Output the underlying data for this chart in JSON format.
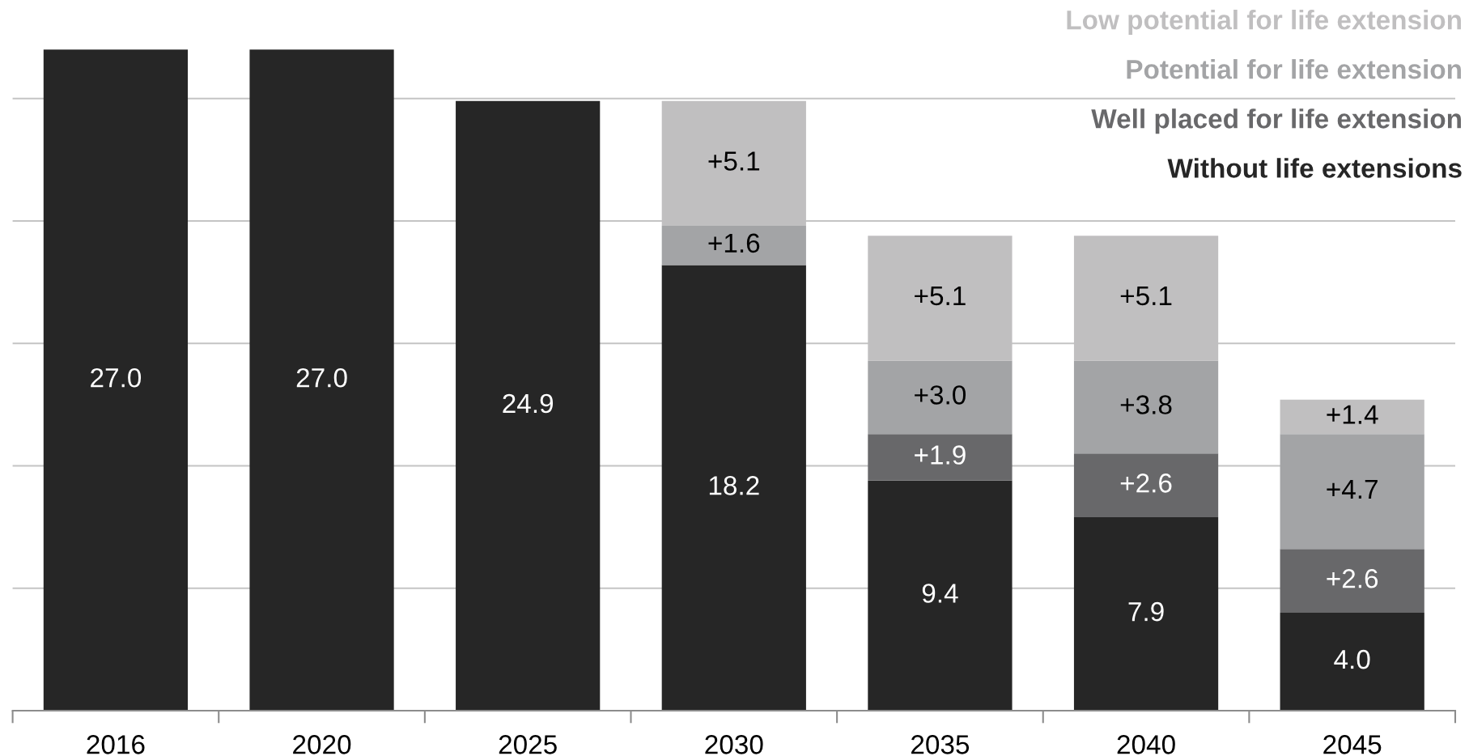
{
  "chart_data": {
    "type": "bar",
    "stacked": true,
    "categories": [
      "2016",
      "2020",
      "2025",
      "2030",
      "2035",
      "2040",
      "2045"
    ],
    "series": [
      {
        "name": "Without life extensions",
        "color": "#262626",
        "values": [
          27.0,
          27.0,
          24.9,
          18.2,
          9.4,
          7.9,
          4.0
        ],
        "value_labels": [
          "27.0",
          "27.0",
          "24.9",
          "18.2",
          "9.4",
          "7.9",
          "4.0"
        ]
      },
      {
        "name": "Well placed for life extension",
        "color": "#68686a",
        "values": [
          null,
          null,
          null,
          null,
          1.9,
          2.6,
          2.6
        ],
        "value_labels": [
          null,
          null,
          null,
          null,
          "+1.9",
          "+2.6",
          "+2.6"
        ]
      },
      {
        "name": "Potential for life extension",
        "color": "#a3a4a6",
        "values": [
          null,
          null,
          null,
          1.6,
          3.0,
          3.8,
          4.7
        ],
        "value_labels": [
          null,
          null,
          null,
          "+1.6",
          "+3.0",
          "+3.8",
          "+4.7"
        ]
      },
      {
        "name": "Low potential for life extension",
        "color": "#c0bfc0",
        "values": [
          null,
          null,
          null,
          5.1,
          5.1,
          5.1,
          1.4
        ],
        "value_labels": [
          null,
          null,
          null,
          "+5.1",
          "+5.1",
          "+5.1",
          "+1.4"
        ]
      }
    ],
    "yticks": [
      {
        "value": 0,
        "label": null
      },
      {
        "value": 5,
        "label": null
      },
      {
        "value": 10,
        "label": null
      },
      {
        "value": 15,
        "label": null
      },
      {
        "value": 20,
        "label": null
      },
      {
        "value": 25,
        "label": null
      }
    ],
    "grid": "y",
    "legend": "top right",
    "tick_labels": "x"
  }
}
